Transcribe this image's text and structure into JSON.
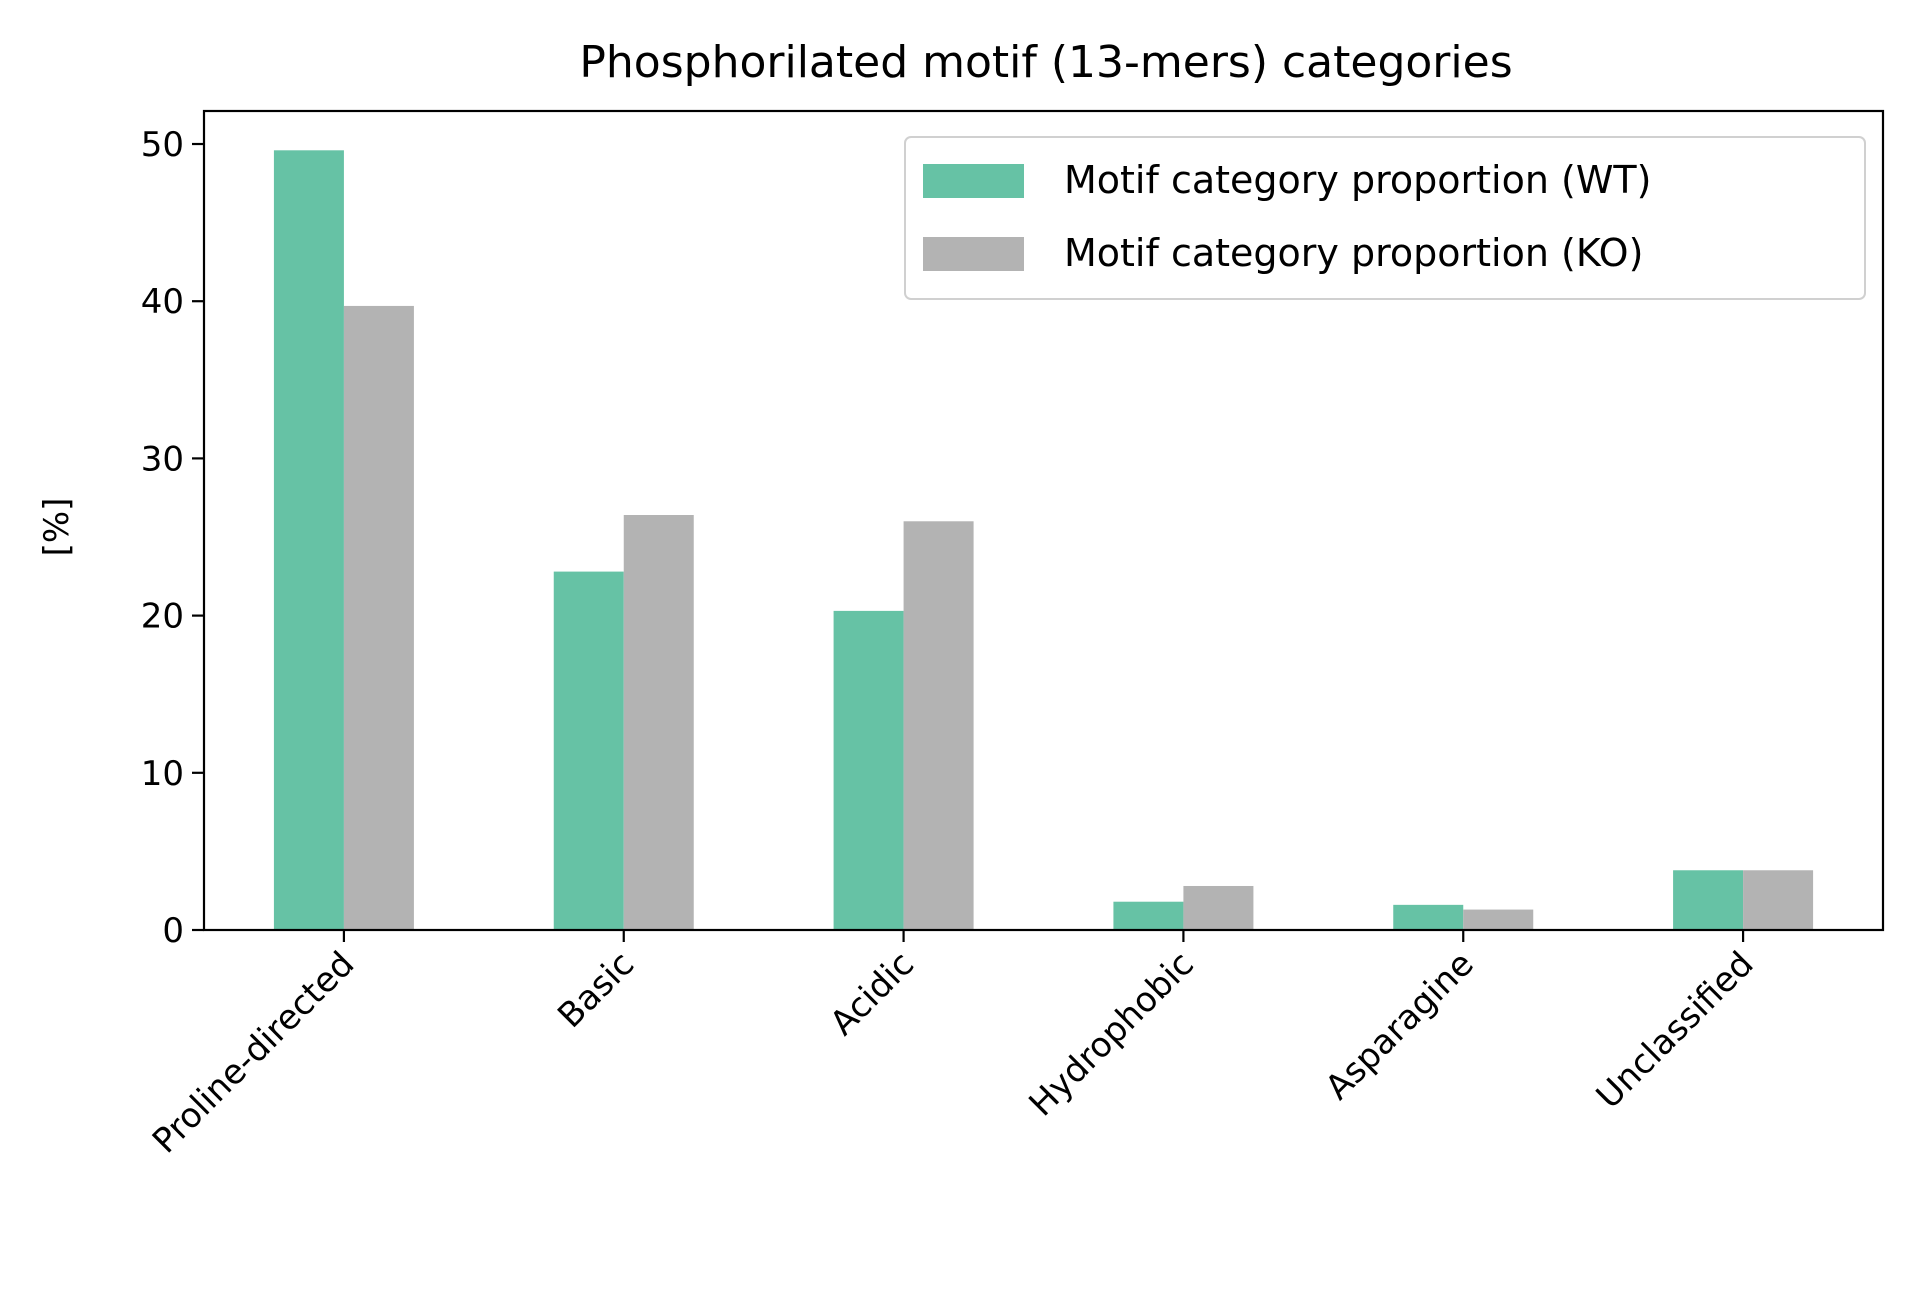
{
  "chart_data": {
    "type": "bar",
    "title": "Phosphorilated motif (13-mers) categories",
    "xlabel": "",
    "ylabel": "[%]",
    "categories": [
      "Proline-directed",
      "Basic",
      "Acidic",
      "Hydrophobic",
      "Asparagine",
      "Unclassified"
    ],
    "series": [
      {
        "name": "Motif category proportion (WT)",
        "color": "#66c2a5",
        "values": [
          49.6,
          22.8,
          20.3,
          1.8,
          1.6,
          3.8
        ]
      },
      {
        "name": "Motif category proportion (KO)",
        "color": "#b3b3b3",
        "values": [
          39.7,
          26.4,
          26.0,
          2.8,
          1.3,
          3.8
        ]
      }
    ],
    "ylim": [
      0,
      52.1
    ],
    "yticks": [
      0,
      10,
      20,
      30,
      40,
      50
    ],
    "grid": false,
    "legend_position": "upper right"
  }
}
